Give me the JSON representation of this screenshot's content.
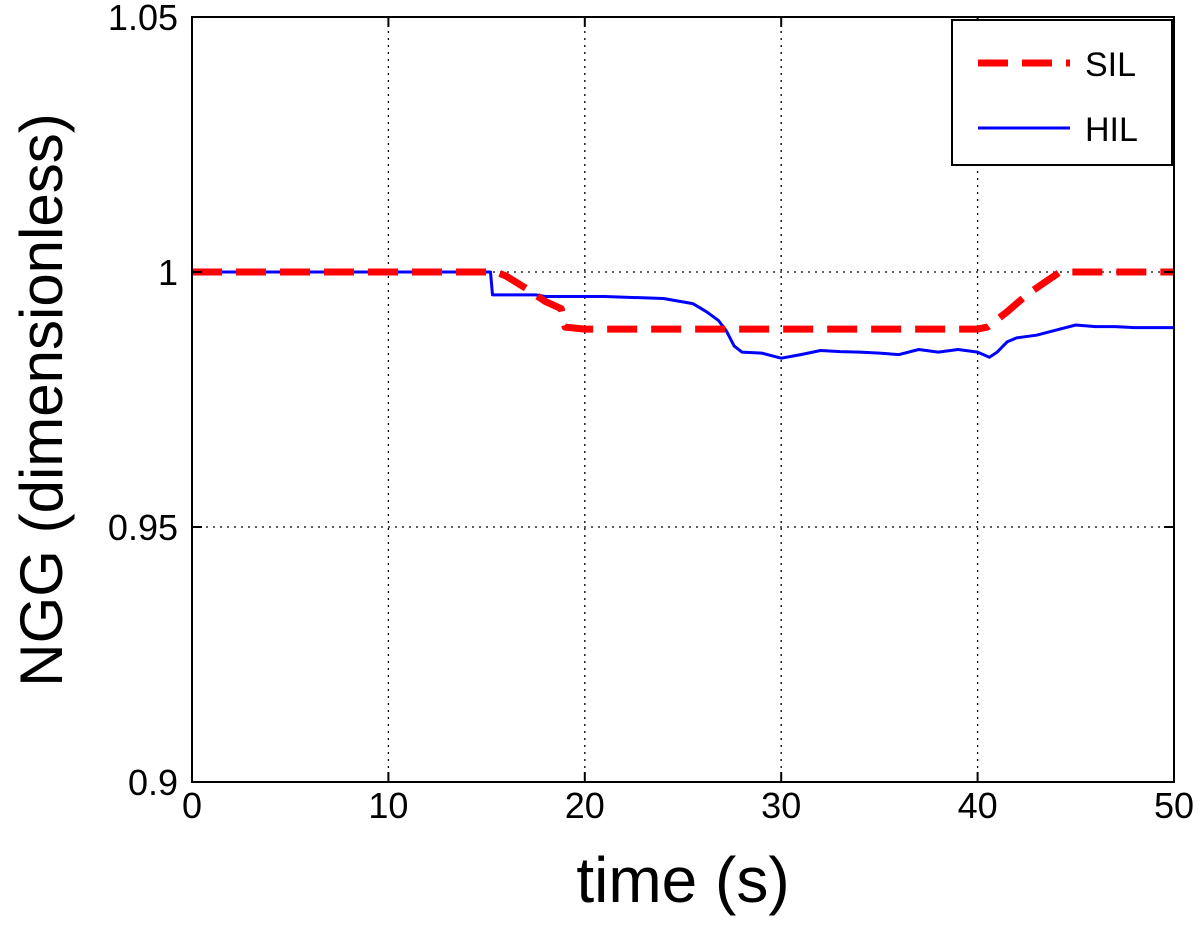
{
  "chart_data": {
    "type": "line",
    "title": "",
    "xlabel": "time (s)",
    "ylabel": "NGG (dimensionless)",
    "xlim": [
      0,
      50
    ],
    "ylim": [
      0.9,
      1.05
    ],
    "xticks": [
      0,
      10,
      20,
      30,
      40,
      50
    ],
    "yticks": [
      0.9,
      0.95,
      1,
      1.05
    ],
    "xtick_labels": [
      "0",
      "10",
      "20",
      "30",
      "40",
      "50"
    ],
    "ytick_labels": [
      "0.9",
      "0.95",
      "1",
      "1.05"
    ],
    "grid": true,
    "legend": "top-right",
    "series": [
      {
        "name": "SIL",
        "color": "#ff0000",
        "style": "dashed",
        "x": [
          0,
          15.5,
          16,
          17,
          18,
          18.8,
          19,
          20,
          25,
          30,
          35,
          40,
          40.5,
          41.5,
          42.5,
          43.5,
          44.2,
          45,
          50
        ],
        "y": [
          1.0,
          1.0,
          0.9992,
          0.9968,
          0.9942,
          0.9928,
          0.9892,
          0.9888,
          0.9888,
          0.9888,
          0.9888,
          0.9888,
          0.9892,
          0.9922,
          0.9955,
          0.9982,
          1.0,
          1.0,
          1.0
        ]
      },
      {
        "name": "HIL",
        "color": "#0000ff",
        "style": "solid",
        "x": [
          0,
          15.2,
          15.3,
          17.5,
          18,
          21,
          24,
          25.5,
          26.2,
          26.8,
          27.2,
          27.6,
          28,
          29,
          30,
          31,
          32,
          33,
          34,
          35,
          36,
          37,
          38,
          39,
          40,
          40.6,
          41,
          41.5,
          42,
          43,
          44,
          45,
          46,
          47,
          48,
          49,
          50
        ],
        "y": [
          1.0,
          1.0,
          0.9955,
          0.9955,
          0.9952,
          0.9952,
          0.9948,
          0.9938,
          0.9922,
          0.9905,
          0.9885,
          0.9855,
          0.9843,
          0.9841,
          0.9831,
          0.9838,
          0.9846,
          0.9844,
          0.9843,
          0.9841,
          0.9838,
          0.9848,
          0.9843,
          0.9848,
          0.9843,
          0.9833,
          0.9843,
          0.9863,
          0.9871,
          0.9876,
          0.9886,
          0.9896,
          0.9893,
          0.9893,
          0.9891,
          0.9891,
          0.9891
        ]
      }
    ]
  }
}
